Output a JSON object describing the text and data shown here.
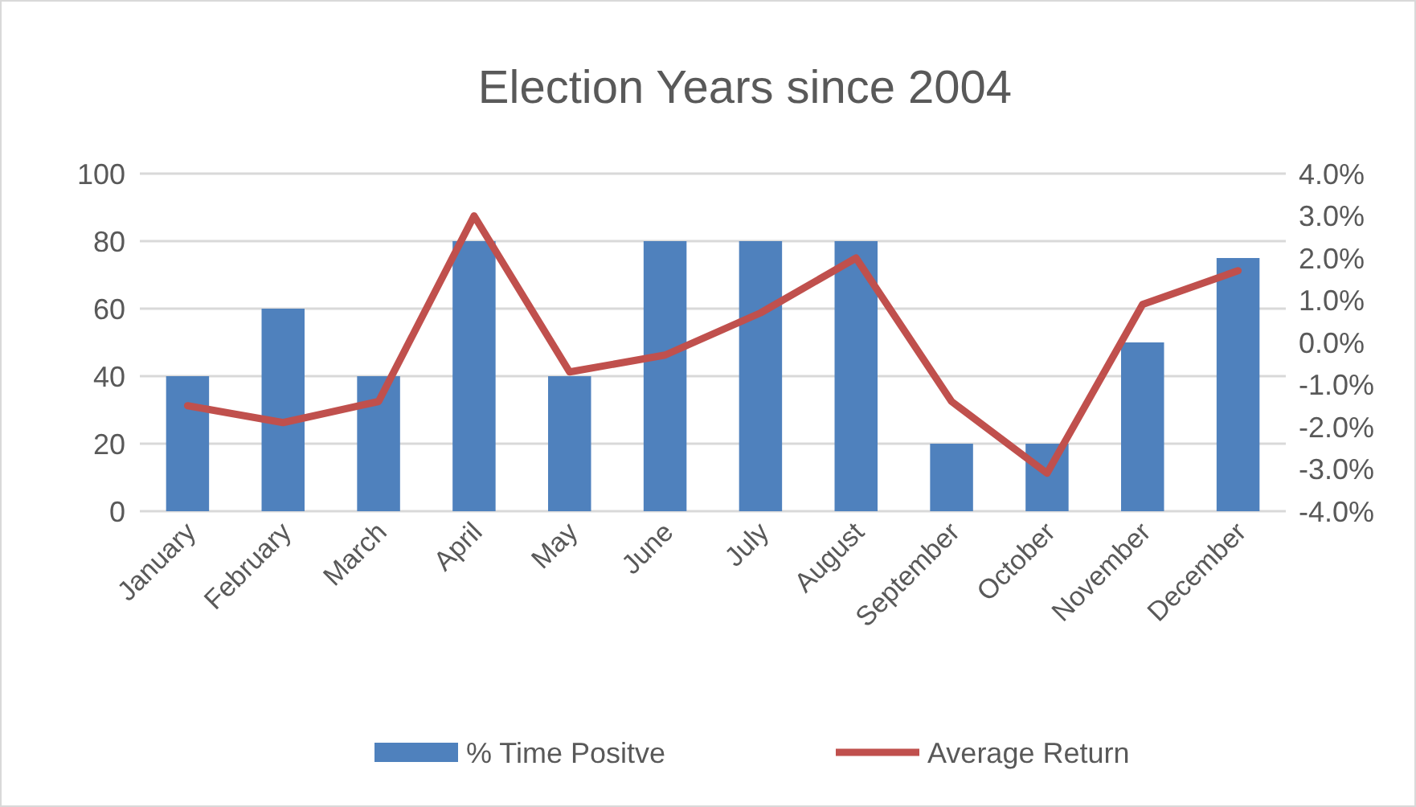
{
  "chart_data": {
    "type": "bar",
    "title": "Election Years since 2004",
    "categories": [
      "January",
      "February",
      "March",
      "April",
      "May",
      "June",
      "July",
      "August",
      "September",
      "October",
      "November",
      "December"
    ],
    "series": [
      {
        "name": "% Time Positve",
        "color": "#4f81bd",
        "values": [
          40,
          60,
          40,
          80,
          40,
          80,
          80,
          80,
          20,
          20,
          50,
          75
        ]
      },
      {
        "name": "Average Return",
        "type": "line",
        "axis": "y2",
        "color": "#c0504d",
        "values": [
          -1.5,
          -1.9,
          -1.4,
          3.0,
          -0.7,
          -0.3,
          0.7,
          2.0,
          -1.4,
          -3.1,
          0.9,
          1.7
        ]
      }
    ],
    "ylim": [
      0,
      100
    ],
    "yticks": [
      0,
      20,
      40,
      60,
      80,
      100
    ],
    "y2lim": [
      -4,
      4
    ],
    "y2ticks": [
      {
        "value": -4,
        "label": "-4.0%"
      },
      {
        "value": -3,
        "label": "-3.0%"
      },
      {
        "value": -2,
        "label": "-2.0%"
      },
      {
        "value": -1,
        "label": "-1.0%"
      },
      {
        "value": 0,
        "label": "0.0%"
      },
      {
        "value": 1,
        "label": "1.0%"
      },
      {
        "value": 2,
        "label": "2.0%"
      },
      {
        "value": 3,
        "label": "3.0%"
      },
      {
        "value": 4,
        "label": "4.0%"
      }
    ],
    "grid": "y",
    "legend": "bottom",
    "marker": "none",
    "line_style": "solid"
  }
}
